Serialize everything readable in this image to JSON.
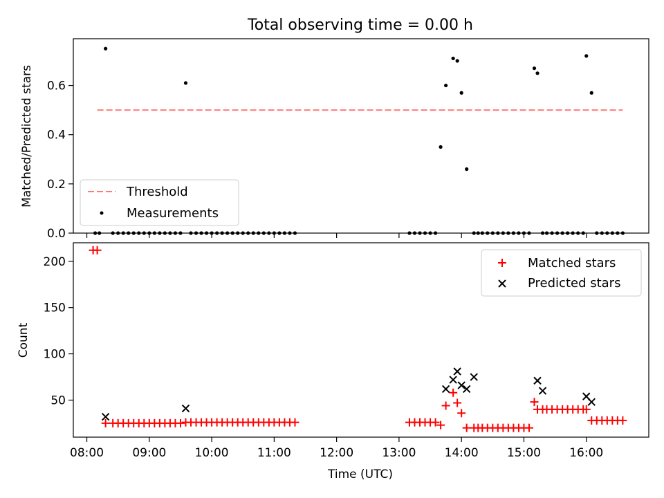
{
  "figure": {
    "title": "Total observing time = 0.00 h"
  },
  "chart_data": [
    {
      "type": "scatter",
      "panel": "top",
      "title": "Total observing time = 0.00 h",
      "xlabel": "",
      "ylabel": "Matched/Predicted stars",
      "x_ticks": [
        "08:00",
        "09:00",
        "10:00",
        "11:00",
        "12:00",
        "13:00",
        "14:00",
        "15:00",
        "16:00"
      ],
      "x_tick_labels_visible": false,
      "y_ticks": [
        0.0,
        0.2,
        0.4,
        0.6
      ],
      "y_tick_labels": [
        "0.0",
        "0.2",
        "0.4",
        "0.6"
      ],
      "xlim": [
        "07:47",
        "17:00"
      ],
      "ylim": [
        0,
        0.79
      ],
      "grid": false,
      "legend_position": "lower left",
      "legend_entries": [
        "Threshold",
        "Measurements"
      ],
      "threshold": {
        "name": "Threshold",
        "value": 0.5,
        "x_range": [
          "08:10",
          "16:35"
        ],
        "color": "#ff7b7b",
        "style": "dashed"
      },
      "measurements": {
        "name": "Measurements",
        "color": "#000000",
        "x": [
          "08:08",
          "08:12",
          "08:18",
          "08:25",
          "08:30",
          "08:35",
          "08:40",
          "08:45",
          "08:50",
          "08:55",
          "09:00",
          "09:05",
          "09:10",
          "09:15",
          "09:20",
          "09:25",
          "09:30",
          "09:35",
          "09:40",
          "09:45",
          "09:50",
          "09:55",
          "10:00",
          "10:05",
          "10:10",
          "10:15",
          "10:20",
          "10:25",
          "10:30",
          "10:35",
          "10:40",
          "10:45",
          "10:50",
          "10:55",
          "11:00",
          "11:05",
          "11:10",
          "11:15",
          "11:20",
          "13:10",
          "13:15",
          "13:20",
          "13:25",
          "13:30",
          "13:35",
          "13:40",
          "13:45",
          "13:52",
          "13:56",
          "14:00",
          "14:05",
          "14:12",
          "14:16",
          "14:20",
          "14:25",
          "14:30",
          "14:35",
          "14:40",
          "14:45",
          "14:50",
          "14:55",
          "15:00",
          "15:05",
          "15:10",
          "15:13",
          "15:18",
          "15:22",
          "15:27",
          "15:32",
          "15:37",
          "15:42",
          "15:47",
          "15:52",
          "15:57",
          "16:00",
          "16:05",
          "16:10",
          "16:15",
          "16:20",
          "16:25",
          "16:30",
          "16:35"
        ],
        "y": [
          0,
          0,
          0.75,
          0,
          0,
          0,
          0,
          0,
          0,
          0,
          0,
          0,
          0,
          0,
          0,
          0,
          0,
          0.61,
          0,
          0,
          0,
          0,
          0,
          0,
          0,
          0,
          0,
          0,
          0,
          0,
          0,
          0,
          0,
          0,
          0,
          0,
          0,
          0,
          0,
          0,
          0,
          0,
          0,
          0,
          0,
          0.35,
          0.6,
          0.71,
          0.7,
          0.57,
          0.26,
          0,
          0,
          0,
          0,
          0,
          0,
          0,
          0,
          0,
          0,
          0,
          0,
          0.67,
          0.65,
          0,
          0,
          0,
          0,
          0,
          0,
          0,
          0,
          0,
          0.72,
          0.57,
          0,
          0,
          0,
          0,
          0,
          0
        ]
      }
    },
    {
      "type": "scatter",
      "panel": "bottom",
      "title": "",
      "xlabel": "Time (UTC)",
      "ylabel": "Count",
      "x_ticks": [
        "08:00",
        "09:00",
        "10:00",
        "11:00",
        "12:00",
        "13:00",
        "14:00",
        "15:00",
        "16:00"
      ],
      "x_tick_labels": [
        "08:00",
        "09:00",
        "10:00",
        "11:00",
        "12:00",
        "13:00",
        "14:00",
        "15:00",
        "16:00"
      ],
      "y_ticks": [
        50,
        100,
        150,
        200
      ],
      "y_tick_labels": [
        "50",
        "100",
        "150",
        "200"
      ],
      "xlim": [
        "07:47",
        "17:00"
      ],
      "ylim": [
        10,
        220
      ],
      "grid": false,
      "legend_position": "top-right",
      "legend_entries": [
        "Matched stars",
        "Predicted stars"
      ],
      "series": [
        {
          "name": "Matched stars",
          "marker": "+",
          "color": "#ff0000",
          "x": [
            "08:06",
            "08:10",
            "08:18",
            "08:25",
            "08:30",
            "08:35",
            "08:40",
            "08:45",
            "08:50",
            "08:55",
            "09:00",
            "09:05",
            "09:10",
            "09:15",
            "09:20",
            "09:25",
            "09:30",
            "09:35",
            "09:40",
            "09:45",
            "09:50",
            "09:55",
            "10:00",
            "10:05",
            "10:10",
            "10:15",
            "10:20",
            "10:25",
            "10:30",
            "10:35",
            "10:40",
            "10:45",
            "10:50",
            "10:55",
            "11:00",
            "11:05",
            "11:10",
            "11:15",
            "11:20",
            "13:10",
            "13:15",
            "13:20",
            "13:25",
            "13:30",
            "13:35",
            "13:40",
            "13:45",
            "13:52",
            "13:56",
            "14:00",
            "14:05",
            "14:12",
            "14:16",
            "14:20",
            "14:25",
            "14:30",
            "14:35",
            "14:40",
            "14:45",
            "14:50",
            "14:55",
            "15:00",
            "15:05",
            "15:10",
            "15:13",
            "15:18",
            "15:22",
            "15:27",
            "15:32",
            "15:37",
            "15:42",
            "15:47",
            "15:52",
            "15:57",
            "16:00",
            "16:05",
            "16:10",
            "16:15",
            "16:20",
            "16:25",
            "16:30",
            "16:35"
          ],
          "y": [
            212,
            212,
            25,
            25,
            25,
            25,
            25,
            25,
            25,
            25,
            25,
            25,
            25,
            25,
            25,
            25,
            25,
            26,
            26,
            26,
            26,
            26,
            26,
            26,
            26,
            26,
            26,
            26,
            26,
            26,
            26,
            26,
            26,
            26,
            26,
            26,
            26,
            26,
            26,
            26,
            26,
            26,
            26,
            26,
            26,
            23,
            44,
            58,
            47,
            36,
            20,
            20,
            20,
            20,
            20,
            20,
            20,
            20,
            20,
            20,
            20,
            20,
            20,
            48,
            40,
            40,
            40,
            40,
            40,
            40,
            40,
            40,
            40,
            40,
            40,
            28,
            28,
            28,
            28,
            28,
            28,
            28
          ]
        },
        {
          "name": "Predicted stars",
          "marker": "x",
          "color": "#000000",
          "x": [
            "08:18",
            "09:35",
            "13:45",
            "13:52",
            "13:56",
            "14:00",
            "14:05",
            "14:12",
            "15:13",
            "15:18",
            "16:00",
            "16:05"
          ],
          "y": [
            32,
            41,
            62,
            72,
            81,
            66,
            62,
            75,
            71,
            60,
            54,
            48
          ]
        }
      ]
    }
  ]
}
